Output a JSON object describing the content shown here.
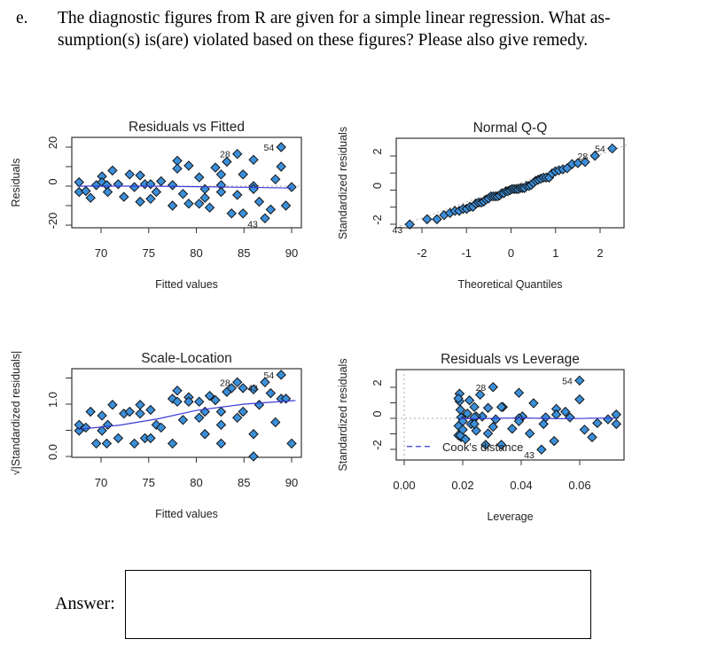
{
  "question": {
    "label": "e.",
    "line1": "The diagnostic figures from R are given for a simple linear regression.  What as-",
    "line2": "sumption(s) is(are) violated based on these figures? Please also give remedy."
  },
  "answer": {
    "label": "Answer:",
    "value": ""
  },
  "colors": {
    "point_fill": "#3b8fd9",
    "point_stroke": "#111111",
    "smooth_line": "#3a3ad6",
    "reference_line": "#aaaaaa"
  },
  "chart_data": [
    {
      "type": "scatter",
      "title": "Residuals vs Fitted",
      "xlabel": "Fitted values",
      "ylabel": "Residuals",
      "xticks": [
        70,
        75,
        80,
        85,
        90
      ],
      "yticks": [
        -20,
        0,
        20
      ],
      "xlim": [
        67,
        91
      ],
      "ylim": [
        -23,
        24
      ],
      "labeled_points": [
        "54",
        "28",
        "43"
      ],
      "points": [
        [
          67.7,
          2
        ],
        [
          67.7,
          -3
        ],
        [
          68.4,
          -2.5
        ],
        [
          68.9,
          -6
        ],
        [
          69.5,
          0.5
        ],
        [
          70.1,
          5
        ],
        [
          70.1,
          2
        ],
        [
          70.6,
          0.5
        ],
        [
          70.7,
          -3
        ],
        [
          71.2,
          8
        ],
        [
          71.8,
          1
        ],
        [
          72.4,
          -5.5
        ],
        [
          73,
          6
        ],
        [
          73.5,
          -0.5
        ],
        [
          74.1,
          5.5
        ],
        [
          74.1,
          -8
        ],
        [
          74.6,
          1
        ],
        [
          75.2,
          1
        ],
        [
          75.2,
          -6.5
        ],
        [
          75.8,
          -3
        ],
        [
          76.3,
          2.5
        ],
        [
          77.5,
          0.5
        ],
        [
          77.5,
          -10
        ],
        [
          78,
          13
        ],
        [
          78,
          9
        ],
        [
          78.6,
          -4
        ],
        [
          79.2,
          10.5
        ],
        [
          79.2,
          -9
        ],
        [
          80.3,
          4.5
        ],
        [
          80.3,
          -9
        ],
        [
          80.9,
          -1.5
        ],
        [
          80.9,
          -6
        ],
        [
          81.4,
          -11
        ],
        [
          82,
          9.5
        ],
        [
          82.6,
          6
        ],
        [
          82.6,
          0.5
        ],
        [
          82.6,
          -3
        ],
        [
          83.2,
          12.5
        ],
        [
          83.7,
          -14
        ],
        [
          84.3,
          16.5
        ],
        [
          84.3,
          -4.5
        ],
        [
          84.9,
          6
        ],
        [
          84.9,
          -14
        ],
        [
          86,
          13.5
        ],
        [
          86,
          0
        ],
        [
          86,
          -1.5
        ],
        [
          86.6,
          -8
        ],
        [
          87.2,
          -16.5
        ],
        [
          87.8,
          -12
        ],
        [
          88.3,
          3.5
        ],
        [
          88.9,
          20
        ],
        [
          88.9,
          10
        ],
        [
          89.4,
          -10
        ],
        [
          90,
          -0.5
        ]
      ],
      "point_ids": {
        "39": "28",
        "50": "54",
        "47": "43"
      },
      "smooth": [
        [
          67.7,
          0
        ],
        [
          75,
          0
        ],
        [
          80,
          -0.3
        ],
        [
          85,
          -0.6
        ],
        [
          90,
          -1
        ]
      ]
    },
    {
      "type": "scatter",
      "title": "Normal Q-Q",
      "xlabel": "Theoretical Quantiles",
      "ylabel": "Standardized residuals",
      "xticks": [
        -2,
        -1,
        0,
        1,
        2
      ],
      "yticks": [
        -2,
        0,
        2
      ],
      "labeled_points": [
        "54",
        "28",
        "43"
      ]
    },
    {
      "type": "scatter",
      "title": "Scale-Location",
      "xlabel": "Fitted values",
      "ylabel": "√|Standardized residuals|",
      "xticks": [
        70,
        75,
        80,
        85,
        90
      ],
      "yticks": [
        "0.0",
        "1.0"
      ],
      "labeled_points": [
        "28",
        "43",
        "54"
      ],
      "smooth": [
        [
          67.7,
          0.52
        ],
        [
          72,
          0.6
        ],
        [
          76,
          0.72
        ],
        [
          80,
          0.88
        ],
        [
          85,
          1.0
        ],
        [
          90.4,
          1.07
        ]
      ]
    },
    {
      "type": "scatter",
      "title": "Residuals vs Leverage",
      "xlabel": "Leverage",
      "ylabel": "Standardized residuals",
      "xticks": [
        "0.00",
        "0.02",
        "0.04",
        "0.06"
      ],
      "yticks": [
        -2,
        0,
        2
      ],
      "legend": "Cook's distance",
      "legend_position": "bottom-left",
      "labeled_points": [
        "54",
        "28",
        "43"
      ]
    }
  ]
}
